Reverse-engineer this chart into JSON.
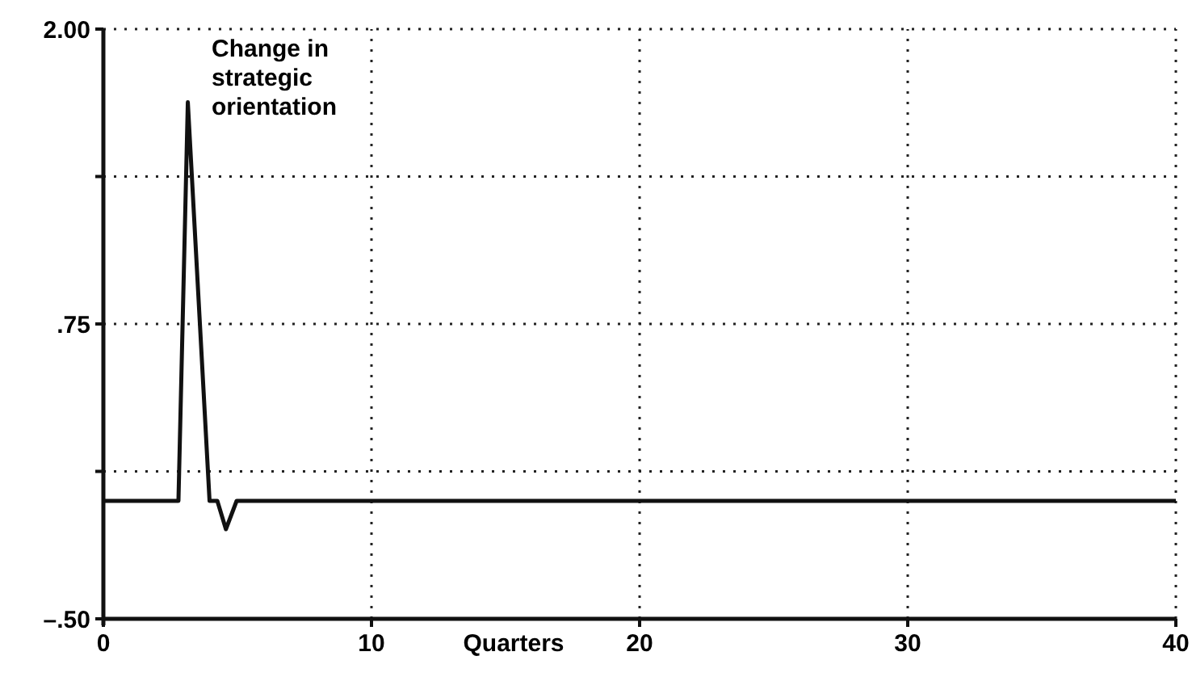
{
  "chart_data": {
    "type": "line",
    "xlabel": "Quarters",
    "annotations": [
      "Change in strategic orientation"
    ],
    "x": [
      0,
      2.8,
      3.15,
      3.96,
      4.25,
      4.57,
      4.97,
      10,
      20,
      30,
      40
    ],
    "series": [
      {
        "color": "#111111",
        "values": [
          0,
          0,
          1.69,
          0,
          0,
          -0.12,
          0,
          0,
          0,
          0,
          0
        ]
      }
    ],
    "xlim": [
      0,
      40
    ],
    "xticks": [
      0,
      10,
      20,
      30,
      40
    ],
    "ylim": [
      -0.5,
      2
    ],
    "yticks": [
      {
        "value": 2,
        "label": "2.00"
      },
      {
        "value": 1.375,
        "label": null
      },
      {
        "value": 0.75,
        "label": ".75"
      },
      {
        "value": 0.125,
        "label": null
      },
      {
        "value": -0.5,
        "label": "–.50"
      }
    ],
    "grid": true,
    "marker": "none",
    "line_style": "solid"
  }
}
